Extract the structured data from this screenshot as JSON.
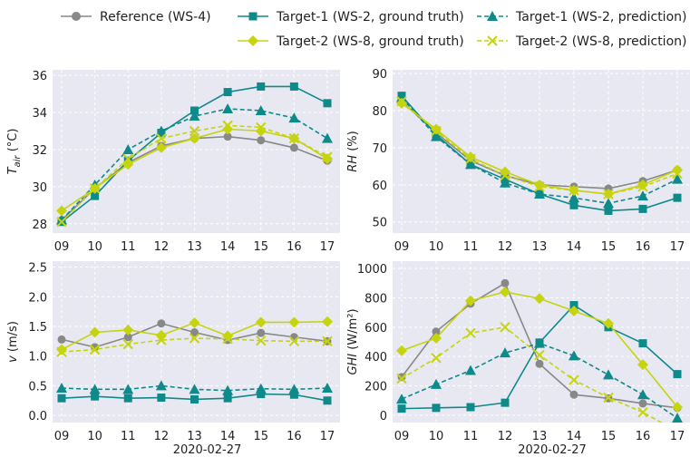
{
  "colors": {
    "reference": "#888888",
    "target1": "#0f8a8a",
    "target2": "#c5d40e",
    "panel_bg": "#e8e8f2",
    "grid": "#ffffff"
  },
  "legend": {
    "placement": "top",
    "items": [
      {
        "label": "Reference (WS-4)",
        "series": "ref",
        "style": "solid",
        "marker": "circle"
      },
      {
        "label": "Target-1 (WS-2, ground truth)",
        "series": "t1gt",
        "style": "solid",
        "marker": "square"
      },
      {
        "label": "Target-1 (WS-2, prediction)",
        "series": "t1pred",
        "style": "dashed",
        "marker": "triangle"
      },
      {
        "label": "Target-2 (WS-8, ground truth)",
        "series": "t2gt",
        "style": "solid",
        "marker": "diamond"
      },
      {
        "label": "Target-2 (WS-8, prediction)",
        "series": "t2pred",
        "style": "dashed",
        "marker": "x"
      }
    ]
  },
  "chart_data": [
    {
      "type": "line",
      "panel": "top-left",
      "ylabel": "T_air (°C)",
      "xlabel": "",
      "categories": [
        "09",
        "10",
        "11",
        "12",
        "13",
        "14",
        "15",
        "16",
        "17"
      ],
      "ylim": [
        27.5,
        36.3
      ],
      "yticks": [
        28,
        30,
        32,
        34,
        36
      ],
      "grid": true,
      "series": [
        {
          "name": "Reference (WS-4)",
          "key": "ref",
          "values": [
            28.2,
            29.9,
            31.3,
            32.2,
            32.6,
            32.7,
            32.5,
            32.1,
            31.4
          ]
        },
        {
          "name": "Target-1 (WS-2, ground truth)",
          "key": "t1gt",
          "values": [
            28.1,
            29.5,
            31.4,
            32.9,
            34.1,
            35.1,
            35.4,
            35.4,
            34.5
          ]
        },
        {
          "name": "Target-1 (WS-2, prediction)",
          "key": "t1pred",
          "values": [
            28.2,
            30.1,
            32.0,
            33.0,
            33.8,
            34.2,
            34.1,
            33.7,
            32.6
          ]
        },
        {
          "name": "Target-2 (WS-8, ground truth)",
          "key": "t2gt",
          "values": [
            28.7,
            29.9,
            31.2,
            32.1,
            32.6,
            33.1,
            33.0,
            32.6,
            31.5
          ]
        },
        {
          "name": "Target-2 (WS-8, prediction)",
          "key": "t2pred",
          "values": [
            28.1,
            29.9,
            31.5,
            32.6,
            33.0,
            33.3,
            33.2,
            32.6,
            31.6
          ]
        }
      ]
    },
    {
      "type": "line",
      "panel": "top-right",
      "ylabel": "RH (%)",
      "xlabel": "",
      "categories": [
        "09",
        "10",
        "11",
        "12",
        "13",
        "14",
        "15",
        "16",
        "17"
      ],
      "ylim": [
        47,
        91
      ],
      "yticks": [
        50,
        60,
        70,
        80,
        90
      ],
      "grid": true,
      "series": [
        {
          "name": "Reference (WS-4)",
          "key": "ref",
          "values": [
            82.5,
            74.0,
            66.5,
            62.5,
            60.0,
            59.5,
            59.0,
            61.0,
            64.0
          ]
        },
        {
          "name": "Target-1 (WS-2, ground truth)",
          "key": "t1gt",
          "values": [
            84.0,
            73.5,
            65.5,
            61.5,
            57.5,
            54.5,
            53.0,
            53.5,
            56.5
          ]
        },
        {
          "name": "Target-1 (WS-2, prediction)",
          "key": "t1pred",
          "values": [
            83.5,
            73.0,
            65.5,
            60.5,
            57.5,
            56.5,
            55.0,
            57.0,
            61.5
          ]
        },
        {
          "name": "Target-2 (WS-8, ground truth)",
          "key": "t2gt",
          "values": [
            82.0,
            75.0,
            67.5,
            63.5,
            60.0,
            58.5,
            57.5,
            60.0,
            64.0
          ]
        },
        {
          "name": "Target-2 (WS-8, prediction)",
          "key": "t2pred",
          "values": [
            82.5,
            74.5,
            67.0,
            62.5,
            59.5,
            58.5,
            57.5,
            59.5,
            63.0
          ]
        }
      ]
    },
    {
      "type": "line",
      "panel": "bottom-left",
      "ylabel": "v (m/s)",
      "xlabel": "2020-02-27",
      "categories": [
        "09",
        "10",
        "11",
        "12",
        "13",
        "14",
        "15",
        "16",
        "17"
      ],
      "ylim": [
        -0.12,
        2.6
      ],
      "yticks": [
        0.0,
        0.5,
        1.0,
        1.5,
        2.0,
        2.5
      ],
      "grid": true,
      "series": [
        {
          "name": "Reference (WS-4)",
          "key": "ref",
          "values": [
            1.28,
            1.15,
            1.32,
            1.55,
            1.4,
            1.27,
            1.39,
            1.32,
            1.25
          ]
        },
        {
          "name": "Target-1 (WS-2, ground truth)",
          "key": "t1gt",
          "values": [
            0.29,
            0.32,
            0.29,
            0.3,
            0.27,
            0.29,
            0.36,
            0.35,
            0.25
          ]
        },
        {
          "name": "Target-1 (WS-2, prediction)",
          "key": "t1pred",
          "values": [
            0.46,
            0.44,
            0.44,
            0.5,
            0.44,
            0.42,
            0.45,
            0.44,
            0.46
          ]
        },
        {
          "name": "Target-2 (WS-8, ground truth)",
          "key": "t2gt",
          "values": [
            1.11,
            1.4,
            1.44,
            1.35,
            1.56,
            1.34,
            1.57,
            1.57,
            1.58
          ]
        },
        {
          "name": "Target-2 (WS-8, prediction)",
          "key": "t2pred",
          "values": [
            1.07,
            1.11,
            1.2,
            1.27,
            1.3,
            1.29,
            1.26,
            1.25,
            1.25
          ]
        }
      ]
    },
    {
      "type": "line",
      "panel": "bottom-right",
      "ylabel": "GHI (W/m²)",
      "xlabel": "2020-02-27",
      "categories": [
        "09",
        "10",
        "11",
        "12",
        "13",
        "14",
        "15",
        "16",
        "17"
      ],
      "ylim": [
        -50,
        1050
      ],
      "yticks": [
        0,
        200,
        400,
        600,
        800,
        1000
      ],
      "grid": true,
      "series": [
        {
          "name": "Reference (WS-4)",
          "key": "ref",
          "values": [
            260,
            570,
            760,
            900,
            350,
            140,
            115,
            80,
            50
          ]
        },
        {
          "name": "Target-1 (WS-2, ground truth)",
          "key": "t1gt",
          "values": [
            45,
            50,
            55,
            85,
            495,
            750,
            600,
            490,
            280
          ]
        },
        {
          "name": "Target-1 (WS-2, prediction)",
          "key": "t1pred",
          "values": [
            110,
            210,
            305,
            425,
            490,
            405,
            275,
            140,
            -20
          ]
        },
        {
          "name": "Target-2 (WS-8, ground truth)",
          "key": "t2gt",
          "values": [
            440,
            525,
            780,
            840,
            795,
            710,
            625,
            345,
            55
          ]
        },
        {
          "name": "Target-2 (WS-8, prediction)",
          "key": "t2pred",
          "values": [
            250,
            390,
            560,
            600,
            410,
            240,
            120,
            20,
            -110
          ]
        }
      ]
    }
  ]
}
